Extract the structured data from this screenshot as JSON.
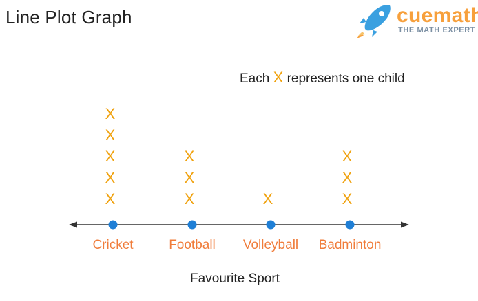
{
  "header": {
    "title": "Line Plot Graph"
  },
  "logo": {
    "brand": "cuemath",
    "tagline": "THE MATH EXPERT",
    "icon": "rocket-icon",
    "colors": {
      "brand": "#f7a03c",
      "rocket": "#3aa0e0",
      "flame": "#f7a03c",
      "tagline": "#7b8fa3"
    }
  },
  "legend": {
    "prefix": "Each",
    "symbol": "X",
    "suffix": "represents one child"
  },
  "chart_data": {
    "type": "line-plot",
    "title": "Line Plot Graph",
    "xlabel": "Favourite Sport",
    "ylabel": "",
    "categories": [
      "Cricket",
      "Football",
      "Volleyball",
      "Badminton"
    ],
    "values": [
      5,
      3,
      1,
      3
    ],
    "marker": "X",
    "unit": "child",
    "grid": false,
    "legend_position": "top-right",
    "colors": {
      "marker": "#f0a20f",
      "category_label": "#f07c3a",
      "point": "#1f7fd6",
      "axis": "#333333"
    }
  }
}
